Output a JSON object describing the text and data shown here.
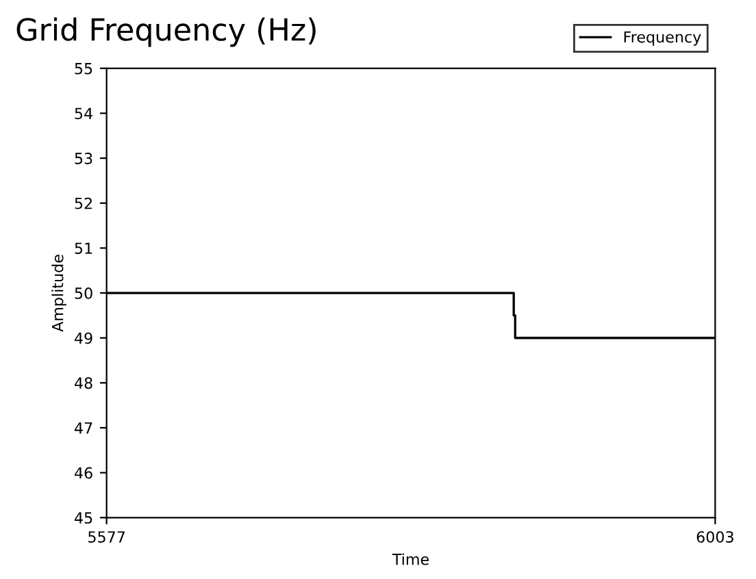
{
  "chart_data": {
    "type": "line",
    "title": "Grid Frequency (Hz)",
    "xlabel": "Time",
    "ylabel": "Amplitude",
    "x": [
      5577,
      5862,
      5862,
      5863,
      5863,
      6003
    ],
    "series": [
      {
        "name": "Frequency",
        "color": "#000000",
        "values": [
          50,
          50,
          49.5,
          49.5,
          49,
          49
        ]
      }
    ],
    "xlim": [
      5577,
      6003
    ],
    "xticks": [
      5577,
      6003
    ],
    "ylim": [
      45,
      55
    ],
    "yticks": [
      45,
      46,
      47,
      48,
      49,
      50,
      51,
      52,
      53,
      54,
      55
    ],
    "grid": false,
    "legend": "top right",
    "marker": "none",
    "line_style": "solid"
  }
}
